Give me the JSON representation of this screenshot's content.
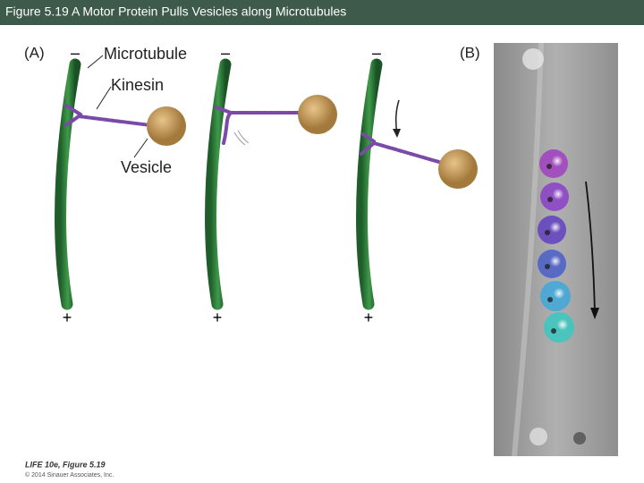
{
  "header": {
    "title": "Figure 5.19  A Motor Protein Pulls Vesicles along Microtubules"
  },
  "panel_a": {
    "label": "(A)",
    "labels": {
      "microtubule": "Microtubule",
      "kinesin": "Kinesin",
      "vesicle": "Vesicle"
    },
    "minus_ends": [
      "–",
      "–",
      "–"
    ],
    "plus_ends": [
      "+",
      "+",
      "+"
    ]
  },
  "panel_b": {
    "label": "(B)"
  },
  "footer": {
    "source": "LIFE 10e, Figure 5.19",
    "copyright": "© 2014 Sinauer Associates, Inc."
  }
}
